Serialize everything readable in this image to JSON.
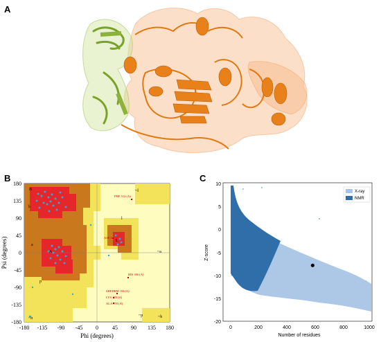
{
  "panels": {
    "a": {
      "label": "A"
    },
    "b": {
      "label": "B",
      "x_axis_label": "Phi (degrees)",
      "y_axis_label": "Psi (degrees)",
      "x_ticks": [
        "-180",
        "-135",
        "-90",
        "-45",
        "0",
        "45",
        "90",
        "135",
        "180"
      ],
      "y_ticks": [
        "180",
        "135",
        "90",
        "45",
        "0",
        "-45",
        "-90",
        "-135",
        "-180"
      ],
      "region_labels": [
        "B",
        "b",
        "a",
        "A",
        "L",
        "l",
        "p",
        "~b",
        "~l",
        "~a",
        "~p",
        "~b"
      ],
      "residue_labels": [
        {
          "text": "PHE 512 (A)"
        },
        {
          "text": "ASP 4"
        },
        {
          "text": "HIS 366 (A)"
        },
        {
          "text": "SHEDRM 1M (A)"
        },
        {
          "text": "LYS 178 (A)"
        },
        {
          "text": "ALA 178 (A)"
        }
      ]
    },
    "c": {
      "label": "C",
      "x_axis_label": "Number of residues",
      "y_axis_label": "Z-score",
      "x_ticks": [
        "0",
        "200",
        "400",
        "600",
        "800",
        "1000"
      ],
      "y_ticks": [
        "10",
        "5",
        "0",
        "-5",
        "-10",
        "-15",
        "-20"
      ],
      "legend": [
        {
          "name": "X-ray",
          "color": "#a9c4e6"
        },
        {
          "name": "NMR",
          "color": "#2f6ea8"
        }
      ],
      "marker": {
        "x": 580,
        "y": -7.6
      }
    }
  },
  "chart_data": [
    {
      "type": "scatter",
      "title": "",
      "xlabel": "Phi (degrees)",
      "ylabel": "Psi (degrees)",
      "xlim": [
        -180,
        180
      ],
      "ylim": [
        -180,
        180
      ]
    },
    {
      "type": "scatter",
      "title": "",
      "xlabel": "Number of residues",
      "ylabel": "Z-score",
      "xlim": [
        0,
        1000
      ],
      "ylim": [
        -20,
        10
      ],
      "series": [
        {
          "name": "X-ray",
          "color": "#a9c4e6"
        },
        {
          "name": "NMR",
          "color": "#2f6ea8"
        }
      ],
      "highlight_point": {
        "x": 580,
        "y": -7.6
      }
    }
  ]
}
